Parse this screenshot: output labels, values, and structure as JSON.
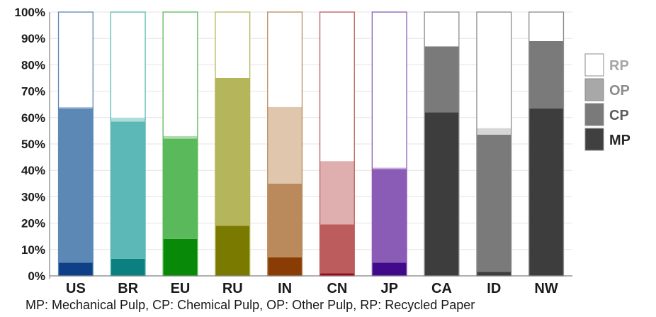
{
  "chart_data": {
    "type": "bar",
    "stacked": true,
    "categories": [
      "US",
      "BR",
      "EU",
      "RU",
      "IN",
      "CN",
      "JP",
      "CA",
      "ID",
      "NW"
    ],
    "ylim": [
      0,
      100
    ],
    "yticks": [
      "0%",
      "10%",
      "20%",
      "30%",
      "40%",
      "50%",
      "60%",
      "70%",
      "80%",
      "90%",
      "100%"
    ],
    "series": [
      {
        "name": "MP",
        "values": [
          5,
          6.5,
          14,
          19,
          7,
          1,
          5,
          62,
          1.5,
          63.5
        ]
      },
      {
        "name": "CP",
        "values": [
          58.5,
          52,
          38,
          56,
          28,
          18.5,
          35.5,
          25,
          52,
          25.5
        ]
      },
      {
        "name": "OP",
        "values": [
          0.5,
          1.5,
          1,
          0,
          29,
          24,
          0.5,
          0,
          2.5,
          0
        ]
      },
      {
        "name": "RP",
        "values": [
          36,
          40,
          47,
          25,
          36,
          56.5,
          59,
          13,
          44,
          11
        ]
      }
    ],
    "colors": {
      "US": [
        "#0f3f86",
        "#5c88b6",
        "#aec3dd",
        "#ffffff"
      ],
      "BR": [
        "#0a8080",
        "#5bb8b6",
        "#aedcdb",
        "#ffffff"
      ],
      "EU": [
        "#088a08",
        "#5ab95a",
        "#aedcae",
        "#ffffff"
      ],
      "RU": [
        "#7a7a00",
        "#b5b55b",
        "#dadaae",
        "#ffffff"
      ],
      "IN": [
        "#8a3c05",
        "#ba8a5c",
        "#e1c6ae",
        "#ffffff"
      ],
      "CN": [
        "#950a1a",
        "#bd5c5c",
        "#dfaeae",
        "#ffffff"
      ],
      "JP": [
        "#400a8a",
        "#8b5cb6",
        "#c6aedb",
        "#ffffff"
      ],
      "CA": [
        "#3d3d3d",
        "#7a7a7a",
        "#bdbdbd",
        "#ffffff"
      ],
      "ID": [
        "#3d3d3d",
        "#7a7a7a",
        "#d6d6d6",
        "#ffffff"
      ],
      "NW": [
        "#3d3d3d",
        "#7a7a7a",
        "#bdbdbd",
        "#ffffff"
      ]
    },
    "outline_colors": {
      "US": "#5c88b6",
      "BR": "#5bb8b6",
      "EU": "#5ab95a",
      "RU": "#b5b55b",
      "IN": "#ba8a5c",
      "CN": "#bd5c5c",
      "JP": "#8b5cb6",
      "CA": "#8c8c8c",
      "ID": "#8c8c8c",
      "NW": "#8c8c8c"
    },
    "grid": true,
    "legend": {
      "placement": "right",
      "entries": [
        {
          "label": "RP",
          "color": "#ffffff",
          "text_color": "#a6a6a6"
        },
        {
          "label": "OP",
          "color": "#a8a8a8",
          "text_color": "#8c8c8c"
        },
        {
          "label": "CP",
          "color": "#7a7a7a",
          "text_color": "#5c5c5c"
        },
        {
          "label": "MP",
          "color": "#404040",
          "text_color": "#262626"
        }
      ]
    },
    "footnote": "MP: Mechanical Pulp, CP: Chemical Pulp, OP: Other Pulp, RP: Recycled Paper"
  }
}
